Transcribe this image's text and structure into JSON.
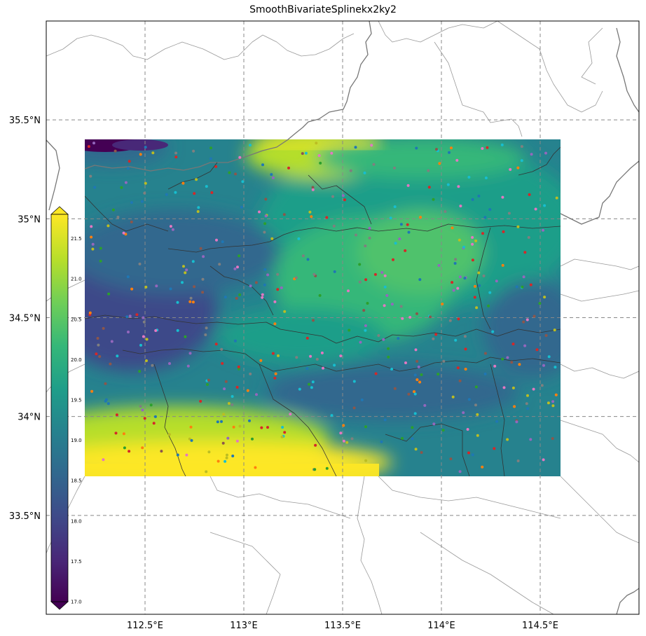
{
  "title": "SmoothBivariateSplinekx2ky2",
  "map": {
    "lon_range": [
      112.0,
      115.0
    ],
    "lat_range": [
      33.0,
      36.0
    ],
    "field_lon_range": [
      112.2,
      114.6
    ],
    "field_lat_range": [
      33.7,
      35.4
    ],
    "x_ticks": [
      {
        "lon": 112.5,
        "label": "112.5°E"
      },
      {
        "lon": 113.0,
        "label": "113°E"
      },
      {
        "lon": 113.5,
        "label": "113.5°E"
      },
      {
        "lon": 114.0,
        "label": "114°E"
      },
      {
        "lon": 114.5,
        "label": "114.5°E"
      }
    ],
    "y_ticks": [
      {
        "lat": 35.5,
        "label": "35.5°N"
      },
      {
        "lat": 35.0,
        "label": "35°N"
      },
      {
        "lat": 34.5,
        "label": "34.5°N"
      },
      {
        "lat": 34.0,
        "label": "34°N"
      },
      {
        "lat": 33.5,
        "label": "33.5°N"
      }
    ],
    "gridlines": true,
    "colormap": "viridis",
    "station_count": 480
  },
  "colorbar": {
    "vmin": 17.0,
    "vmax": 21.8,
    "labels": [
      "17.0",
      "17.5",
      "18.0",
      "18.5",
      "19.0",
      "19.5",
      "20.0",
      "20.5",
      "21.0",
      "21.5"
    ],
    "extend": "both",
    "position": "left"
  },
  "colors": {
    "viridis": [
      "#440154",
      "#482878",
      "#3e4a89",
      "#31688e",
      "#26828e",
      "#1f9e89",
      "#35b779",
      "#6ece58",
      "#b5de2b",
      "#fde725"
    ],
    "station_dots": [
      "#d62728",
      "#1f77b4",
      "#ff7f0e",
      "#2ca02c",
      "#9467bd",
      "#e377c2",
      "#17becf",
      "#bcbd22",
      "#8c564b",
      "#7f7f7f"
    ]
  }
}
